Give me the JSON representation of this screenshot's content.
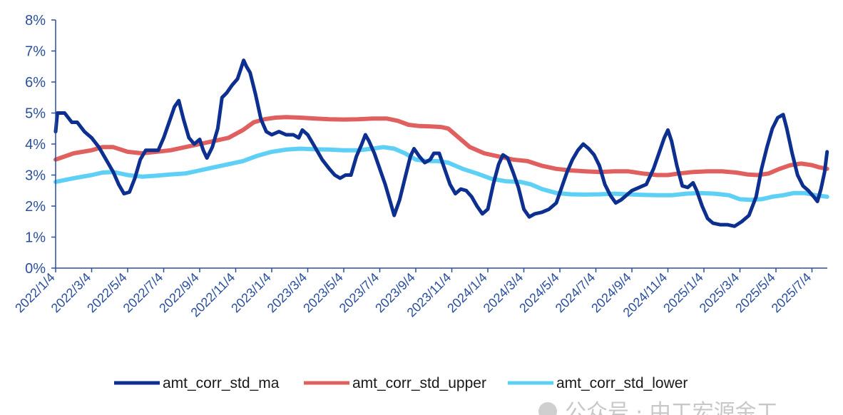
{
  "chart_data": {
    "type": "line",
    "ylim": [
      0,
      8
    ],
    "y_ticks": [
      "0%",
      "1%",
      "2%",
      "3%",
      "4%",
      "5%",
      "6%",
      "7%",
      "8%"
    ],
    "x_tick_labels": [
      "2022/1/4",
      "2022/3/4",
      "2022/5/4",
      "2022/7/4",
      "2022/9/4",
      "2022/11/4",
      "2023/1/4",
      "2023/3/4",
      "2023/5/4",
      "2023/7/4",
      "2023/9/4",
      "2023/11/4",
      "2024/1/4",
      "2024/3/4",
      "2024/5/4",
      "2024/7/4",
      "2024/9/4",
      "2024/11/4",
      "2025/1/4",
      "2025/3/4",
      "2025/5/4",
      "2025/7/4"
    ],
    "x_range": [
      0,
      21.35
    ],
    "legend_position": "bottom",
    "grid": false,
    "series": [
      {
        "name": "amt_corr_std_ma",
        "color": "#0d2f8f",
        "points": [
          [
            0,
            4.4
          ],
          [
            0.05,
            5.0
          ],
          [
            0.25,
            5.0
          ],
          [
            0.45,
            4.7
          ],
          [
            0.6,
            4.7
          ],
          [
            0.8,
            4.4
          ],
          [
            1.0,
            4.2
          ],
          [
            1.2,
            3.9
          ],
          [
            1.4,
            3.5
          ],
          [
            1.6,
            3.1
          ],
          [
            1.75,
            2.7
          ],
          [
            1.9,
            2.4
          ],
          [
            2.05,
            2.45
          ],
          [
            2.2,
            2.9
          ],
          [
            2.35,
            3.5
          ],
          [
            2.5,
            3.8
          ],
          [
            2.7,
            3.8
          ],
          [
            2.85,
            3.8
          ],
          [
            3.0,
            4.2
          ],
          [
            3.15,
            4.7
          ],
          [
            3.3,
            5.2
          ],
          [
            3.42,
            5.4
          ],
          [
            3.55,
            4.8
          ],
          [
            3.7,
            4.2
          ],
          [
            3.85,
            4.0
          ],
          [
            4.0,
            4.15
          ],
          [
            4.1,
            3.8
          ],
          [
            4.2,
            3.55
          ],
          [
            4.35,
            3.9
          ],
          [
            4.5,
            4.5
          ],
          [
            4.62,
            5.5
          ],
          [
            4.75,
            5.65
          ],
          [
            4.9,
            5.9
          ],
          [
            5.05,
            6.1
          ],
          [
            5.15,
            6.45
          ],
          [
            5.22,
            6.7
          ],
          [
            5.3,
            6.5
          ],
          [
            5.4,
            6.3
          ],
          [
            5.55,
            5.6
          ],
          [
            5.7,
            4.8
          ],
          [
            5.85,
            4.4
          ],
          [
            6.0,
            4.3
          ],
          [
            6.2,
            4.4
          ],
          [
            6.4,
            4.3
          ],
          [
            6.6,
            4.3
          ],
          [
            6.75,
            4.2
          ],
          [
            6.85,
            4.45
          ],
          [
            7.0,
            4.3
          ],
          [
            7.2,
            3.9
          ],
          [
            7.4,
            3.5
          ],
          [
            7.6,
            3.2
          ],
          [
            7.75,
            3.0
          ],
          [
            7.9,
            2.9
          ],
          [
            8.05,
            3.0
          ],
          [
            8.2,
            3.0
          ],
          [
            8.35,
            3.6
          ],
          [
            8.5,
            4.0
          ],
          [
            8.6,
            4.3
          ],
          [
            8.7,
            4.1
          ],
          [
            8.85,
            3.7
          ],
          [
            9.0,
            3.2
          ],
          [
            9.15,
            2.7
          ],
          [
            9.3,
            2.1
          ],
          [
            9.4,
            1.7
          ],
          [
            9.55,
            2.2
          ],
          [
            9.7,
            2.9
          ],
          [
            9.85,
            3.6
          ],
          [
            9.95,
            3.85
          ],
          [
            10.1,
            3.6
          ],
          [
            10.25,
            3.4
          ],
          [
            10.4,
            3.5
          ],
          [
            10.5,
            3.7
          ],
          [
            10.65,
            3.7
          ],
          [
            10.8,
            3.2
          ],
          [
            10.95,
            2.7
          ],
          [
            11.1,
            2.4
          ],
          [
            11.25,
            2.55
          ],
          [
            11.4,
            2.5
          ],
          [
            11.55,
            2.3
          ],
          [
            11.7,
            2.0
          ],
          [
            11.85,
            1.75
          ],
          [
            12.0,
            1.9
          ],
          [
            12.15,
            2.7
          ],
          [
            12.3,
            3.35
          ],
          [
            12.42,
            3.65
          ],
          [
            12.55,
            3.55
          ],
          [
            12.7,
            3.1
          ],
          [
            12.85,
            2.6
          ],
          [
            13.0,
            1.9
          ],
          [
            13.15,
            1.65
          ],
          [
            13.3,
            1.75
          ],
          [
            13.5,
            1.8
          ],
          [
            13.7,
            1.9
          ],
          [
            13.9,
            2.1
          ],
          [
            14.05,
            2.6
          ],
          [
            14.2,
            3.1
          ],
          [
            14.35,
            3.5
          ],
          [
            14.5,
            3.8
          ],
          [
            14.65,
            4.0
          ],
          [
            14.8,
            3.85
          ],
          [
            14.95,
            3.65
          ],
          [
            15.1,
            3.3
          ],
          [
            15.25,
            2.7
          ],
          [
            15.4,
            2.35
          ],
          [
            15.55,
            2.1
          ],
          [
            15.7,
            2.2
          ],
          [
            15.85,
            2.35
          ],
          [
            16.0,
            2.5
          ],
          [
            16.2,
            2.6
          ],
          [
            16.4,
            2.7
          ],
          [
            16.6,
            3.2
          ],
          [
            16.75,
            3.7
          ],
          [
            16.9,
            4.2
          ],
          [
            17.0,
            4.45
          ],
          [
            17.1,
            4.1
          ],
          [
            17.25,
            3.3
          ],
          [
            17.4,
            2.65
          ],
          [
            17.55,
            2.6
          ],
          [
            17.7,
            2.75
          ],
          [
            17.8,
            2.5
          ],
          [
            17.95,
            2.0
          ],
          [
            18.1,
            1.6
          ],
          [
            18.25,
            1.45
          ],
          [
            18.45,
            1.4
          ],
          [
            18.65,
            1.4
          ],
          [
            18.85,
            1.35
          ],
          [
            19.05,
            1.5
          ],
          [
            19.25,
            1.7
          ],
          [
            19.45,
            2.3
          ],
          [
            19.6,
            3.2
          ],
          [
            19.75,
            3.9
          ],
          [
            19.9,
            4.5
          ],
          [
            20.05,
            4.85
          ],
          [
            20.2,
            4.95
          ],
          [
            20.3,
            4.5
          ],
          [
            20.45,
            3.7
          ],
          [
            20.6,
            3.0
          ],
          [
            20.75,
            2.65
          ],
          [
            20.9,
            2.5
          ],
          [
            21.05,
            2.3
          ],
          [
            21.15,
            2.15
          ],
          [
            21.25,
            2.55
          ],
          [
            21.35,
            3.1
          ],
          [
            21.42,
            3.75
          ]
        ]
      },
      {
        "name": "amt_corr_std_upper",
        "color": "#e06060",
        "points": [
          [
            0,
            3.5
          ],
          [
            0.5,
            3.7
          ],
          [
            1.0,
            3.8
          ],
          [
            1.3,
            3.9
          ],
          [
            1.6,
            3.9
          ],
          [
            2.0,
            3.75
          ],
          [
            2.4,
            3.7
          ],
          [
            2.8,
            3.75
          ],
          [
            3.2,
            3.8
          ],
          [
            3.6,
            3.9
          ],
          [
            4.0,
            4.0
          ],
          [
            4.4,
            4.1
          ],
          [
            4.8,
            4.2
          ],
          [
            5.2,
            4.45
          ],
          [
            5.5,
            4.7
          ],
          [
            5.8,
            4.8
          ],
          [
            6.1,
            4.85
          ],
          [
            6.4,
            4.87
          ],
          [
            6.8,
            4.85
          ],
          [
            7.2,
            4.82
          ],
          [
            7.6,
            4.8
          ],
          [
            8.0,
            4.79
          ],
          [
            8.4,
            4.8
          ],
          [
            8.8,
            4.82
          ],
          [
            9.2,
            4.82
          ],
          [
            9.5,
            4.75
          ],
          [
            9.8,
            4.62
          ],
          [
            10.1,
            4.58
          ],
          [
            10.4,
            4.57
          ],
          [
            10.7,
            4.55
          ],
          [
            10.9,
            4.5
          ],
          [
            11.2,
            4.2
          ],
          [
            11.5,
            3.9
          ],
          [
            11.9,
            3.7
          ],
          [
            12.3,
            3.6
          ],
          [
            12.7,
            3.5
          ],
          [
            13.1,
            3.45
          ],
          [
            13.5,
            3.3
          ],
          [
            13.9,
            3.2
          ],
          [
            14.3,
            3.15
          ],
          [
            14.7,
            3.12
          ],
          [
            15.1,
            3.1
          ],
          [
            15.5,
            3.12
          ],
          [
            15.9,
            3.12
          ],
          [
            16.3,
            3.05
          ],
          [
            16.7,
            3.0
          ],
          [
            17.0,
            3.0
          ],
          [
            17.3,
            3.05
          ],
          [
            17.7,
            3.1
          ],
          [
            18.1,
            3.12
          ],
          [
            18.5,
            3.12
          ],
          [
            18.9,
            3.08
          ],
          [
            19.2,
            3.02
          ],
          [
            19.5,
            3.0
          ],
          [
            19.8,
            3.05
          ],
          [
            20.1,
            3.2
          ],
          [
            20.4,
            3.32
          ],
          [
            20.7,
            3.37
          ],
          [
            21.0,
            3.32
          ],
          [
            21.2,
            3.25
          ],
          [
            21.42,
            3.2
          ]
        ]
      },
      {
        "name": "amt_corr_std_lower",
        "color": "#5fd0f5",
        "points": [
          [
            0,
            2.78
          ],
          [
            0.5,
            2.9
          ],
          [
            1.0,
            3.0
          ],
          [
            1.3,
            3.08
          ],
          [
            1.6,
            3.1
          ],
          [
            2.0,
            3.0
          ],
          [
            2.4,
            2.95
          ],
          [
            2.8,
            2.98
          ],
          [
            3.2,
            3.02
          ],
          [
            3.6,
            3.05
          ],
          [
            4.0,
            3.15
          ],
          [
            4.4,
            3.25
          ],
          [
            4.8,
            3.35
          ],
          [
            5.2,
            3.45
          ],
          [
            5.6,
            3.62
          ],
          [
            6.0,
            3.75
          ],
          [
            6.4,
            3.82
          ],
          [
            6.8,
            3.85
          ],
          [
            7.2,
            3.83
          ],
          [
            7.6,
            3.82
          ],
          [
            8.0,
            3.8
          ],
          [
            8.4,
            3.8
          ],
          [
            8.8,
            3.85
          ],
          [
            9.1,
            3.9
          ],
          [
            9.4,
            3.85
          ],
          [
            9.7,
            3.7
          ],
          [
            10.0,
            3.5
          ],
          [
            10.3,
            3.45
          ],
          [
            10.6,
            3.45
          ],
          [
            10.9,
            3.4
          ],
          [
            11.3,
            3.2
          ],
          [
            11.7,
            3.05
          ],
          [
            12.1,
            2.88
          ],
          [
            12.5,
            2.8
          ],
          [
            12.9,
            2.78
          ],
          [
            13.2,
            2.7
          ],
          [
            13.5,
            2.55
          ],
          [
            13.9,
            2.42
          ],
          [
            14.3,
            2.38
          ],
          [
            14.7,
            2.37
          ],
          [
            15.1,
            2.38
          ],
          [
            15.5,
            2.4
          ],
          [
            15.9,
            2.38
          ],
          [
            16.3,
            2.36
          ],
          [
            16.7,
            2.35
          ],
          [
            17.1,
            2.35
          ],
          [
            17.5,
            2.4
          ],
          [
            17.9,
            2.42
          ],
          [
            18.3,
            2.4
          ],
          [
            18.7,
            2.35
          ],
          [
            19.0,
            2.22
          ],
          [
            19.3,
            2.2
          ],
          [
            19.6,
            2.22
          ],
          [
            19.9,
            2.3
          ],
          [
            20.2,
            2.35
          ],
          [
            20.5,
            2.42
          ],
          [
            20.8,
            2.42
          ],
          [
            21.1,
            2.35
          ],
          [
            21.42,
            2.3
          ]
        ]
      }
    ]
  },
  "watermark": "公众号 · 中工宏源金工"
}
